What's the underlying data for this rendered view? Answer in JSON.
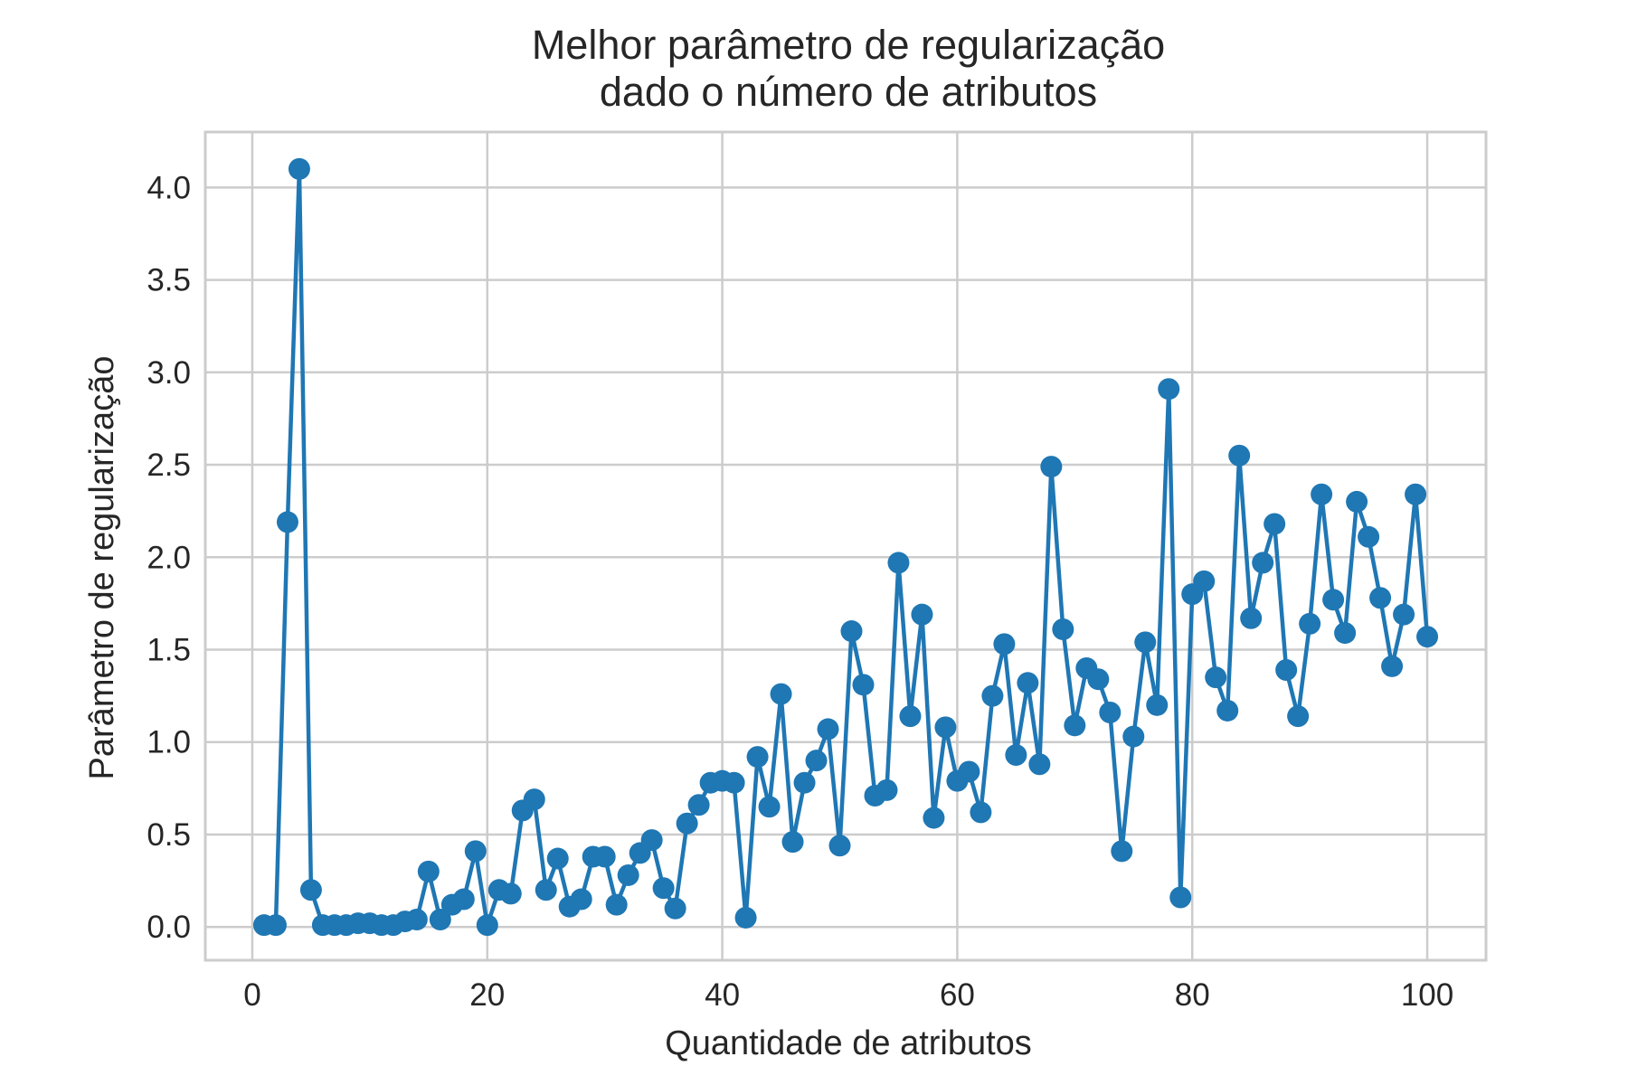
{
  "chart_data": {
    "type": "line",
    "title_lines": [
      "Melhor parâmetro de regularização",
      "dado o número de atributos"
    ],
    "xlabel": "Quantidade de atributos",
    "ylabel": "Parâmetro de regularização",
    "xlim": [
      -4,
      105
    ],
    "ylim": [
      -0.18,
      4.3
    ],
    "xticks": [
      0,
      20,
      40,
      60,
      80,
      100
    ],
    "xtick_labels": [
      "0",
      "20",
      "40",
      "60",
      "80",
      "100"
    ],
    "yticks": [
      0.0,
      0.5,
      1.0,
      1.5,
      2.0,
      2.5,
      3.0,
      3.5,
      4.0
    ],
    "ytick_labels": [
      "0.0",
      "0.5",
      "1.0",
      "1.5",
      "2.0",
      "2.5",
      "3.0",
      "3.5",
      "4.0"
    ],
    "grid": true,
    "series": [
      {
        "color": "#1f77b4",
        "marker": "circle",
        "x": [
          1,
          2,
          3,
          4,
          5,
          6,
          7,
          8,
          9,
          10,
          11,
          12,
          13,
          14,
          15,
          16,
          17,
          18,
          19,
          20,
          21,
          22,
          23,
          24,
          25,
          26,
          27,
          28,
          29,
          30,
          31,
          32,
          33,
          34,
          35,
          36,
          37,
          38,
          39,
          40,
          41,
          42,
          43,
          44,
          45,
          46,
          47,
          48,
          49,
          50,
          51,
          52,
          53,
          54,
          55,
          56,
          57,
          58,
          59,
          60,
          61,
          62,
          63,
          64,
          65,
          66,
          67,
          68,
          69,
          70,
          71,
          72,
          73,
          74,
          75,
          76,
          77,
          78,
          79,
          80,
          81,
          82,
          83,
          84,
          85,
          86,
          87,
          88,
          89,
          90,
          91,
          92,
          93,
          94,
          95,
          96,
          97,
          98,
          99,
          100
        ],
        "y": [
          0.01,
          0.01,
          2.19,
          4.1,
          0.2,
          0.01,
          0.01,
          0.01,
          0.02,
          0.02,
          0.01,
          0.01,
          0.03,
          0.04,
          0.3,
          0.04,
          0.12,
          0.15,
          0.41,
          0.01,
          0.2,
          0.18,
          0.63,
          0.69,
          0.2,
          0.37,
          0.11,
          0.15,
          0.38,
          0.38,
          0.12,
          0.28,
          0.4,
          0.47,
          0.21,
          0.1,
          0.56,
          0.66,
          0.78,
          0.79,
          0.78,
          0.05,
          0.92,
          0.65,
          1.26,
          0.46,
          0.78,
          0.9,
          1.07,
          0.44,
          1.6,
          1.31,
          0.71,
          0.74,
          1.97,
          1.14,
          1.69,
          0.59,
          1.08,
          0.79,
          0.84,
          0.62,
          1.25,
          1.53,
          0.93,
          1.32,
          0.88,
          2.49,
          1.61,
          1.09,
          1.4,
          1.34,
          1.16,
          0.41,
          1.03,
          1.54,
          1.2,
          2.91,
          0.16,
          1.8,
          1.87,
          1.35,
          1.17,
          2.55,
          1.67,
          1.97,
          2.18,
          1.39,
          1.14,
          1.64,
          2.34,
          1.77,
          1.59,
          2.3,
          2.11,
          1.78,
          1.41,
          1.69,
          2.34,
          1.57
        ]
      }
    ]
  }
}
